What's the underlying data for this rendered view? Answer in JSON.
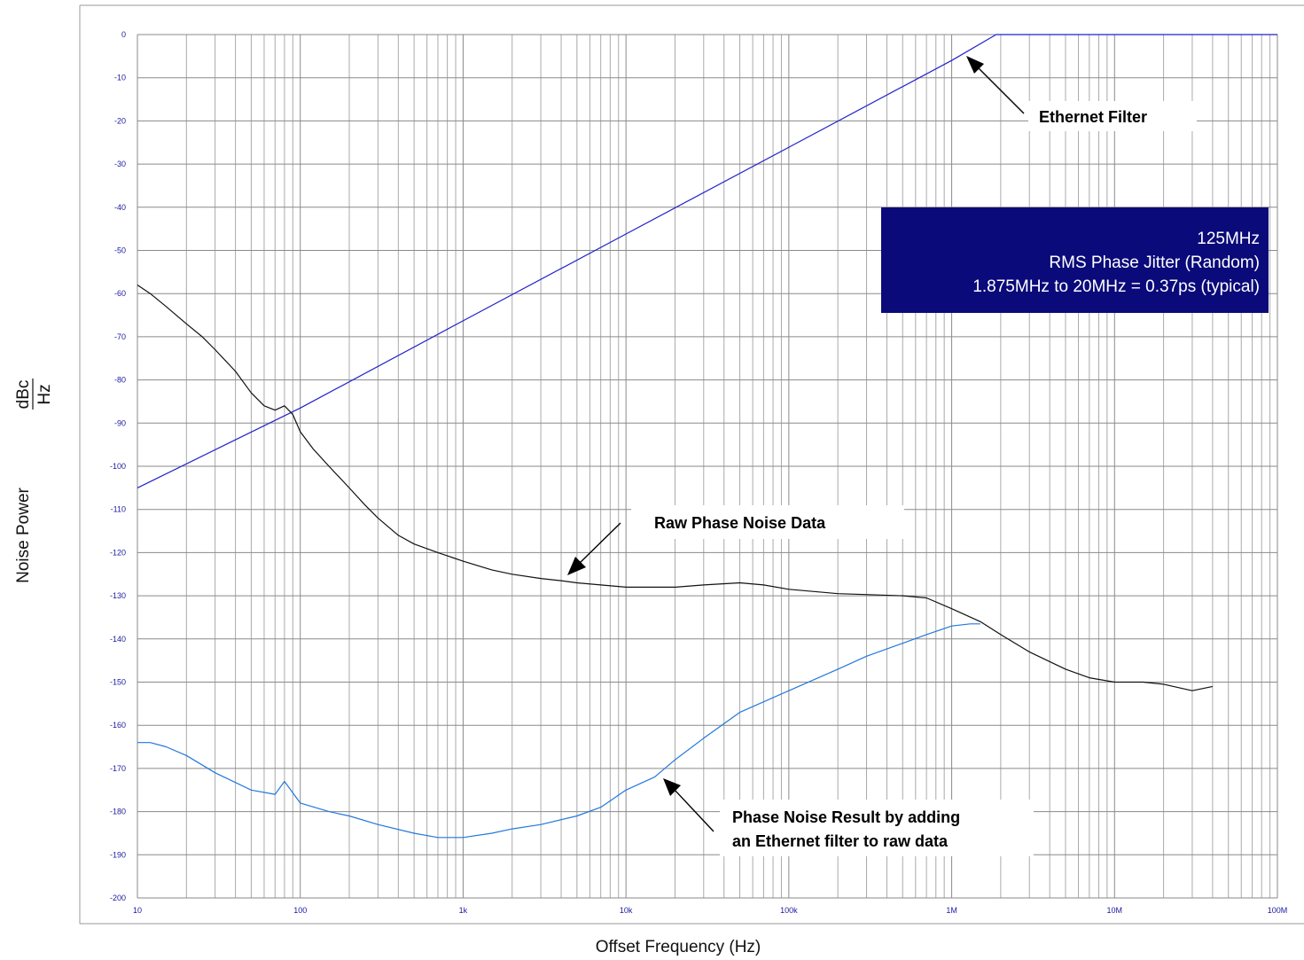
{
  "chart_data": {
    "type": "line",
    "x_scale": "log",
    "xlabel": "Offset Frequency (Hz)",
    "ylabel": "Noise Power",
    "ylabel_unit_num": "dBc",
    "ylabel_unit_den": "Hz",
    "xlim": [
      10,
      100000000
    ],
    "ylim": [
      -200,
      0
    ],
    "grid": true,
    "x_ticks": [
      {
        "value": 10,
        "label": "10"
      },
      {
        "value": 100,
        "label": "100"
      },
      {
        "value": 1000,
        "label": "1k"
      },
      {
        "value": 10000,
        "label": "10k"
      },
      {
        "value": 100000,
        "label": "100k"
      },
      {
        "value": 1000000,
        "label": "1M"
      },
      {
        "value": 10000000,
        "label": "10M"
      },
      {
        "value": 100000000,
        "label": "100M"
      }
    ],
    "y_ticks": [
      0,
      -10,
      -20,
      -30,
      -40,
      -50,
      -60,
      -70,
      -80,
      -90,
      -100,
      -110,
      -120,
      -130,
      -140,
      -150,
      -160,
      -170,
      -180,
      -190,
      -200
    ],
    "colors": {
      "ethernet_filter": "#2222cc",
      "raw": "#111111",
      "result": "#2277dd",
      "box": "#0a0a7a"
    },
    "series": [
      {
        "key": "ethernet_filter",
        "x": [
          10,
          100,
          1000,
          10000,
          100000,
          1000000,
          1875000,
          100000000
        ],
        "y": [
          -105,
          -86.5,
          -66.3,
          -46.2,
          -26.1,
          -6,
          0,
          0
        ]
      },
      {
        "key": "raw",
        "x": [
          10,
          12,
          15,
          20,
          25,
          30,
          40,
          50,
          60,
          70,
          80,
          90,
          100,
          120,
          150,
          200,
          250,
          300,
          400,
          500,
          700,
          1000,
          1500,
          2000,
          3000,
          4000,
          5000,
          7000,
          10000,
          15000,
          20000,
          30000,
          50000,
          70000,
          100000,
          200000,
          500000,
          700000,
          1000000,
          1500000,
          2000000,
          3000000,
          5000000,
          7000000,
          10000000,
          15000000,
          20000000,
          30000000,
          40000000
        ],
        "y": [
          -58,
          -60,
          -63,
          -67,
          -70,
          -73,
          -78,
          -83,
          -86,
          -87,
          -86,
          -88,
          -92,
          -96,
          -100,
          -105,
          -109,
          -112,
          -116,
          -118,
          -120,
          -122,
          -124,
          -125,
          -126,
          -126.5,
          -127,
          -127.5,
          -128,
          -128,
          -128,
          -127.5,
          -127,
          -127.5,
          -128.5,
          -129.5,
          -130,
          -130.5,
          -133,
          -136,
          -139,
          -143,
          -147,
          -149,
          -150,
          -150,
          -150.5,
          -152,
          -151
        ]
      },
      {
        "key": "result",
        "x": [
          10,
          12,
          15,
          20,
          30,
          50,
          70,
          80,
          100,
          150,
          200,
          300,
          500,
          700,
          1000,
          1500,
          2000,
          3000,
          5000,
          7000,
          10000,
          15000,
          20000,
          30000,
          50000,
          100000,
          200000,
          300000,
          500000,
          700000,
          1000000,
          1300000,
          1500000
        ],
        "y": [
          -164,
          -164,
          -165,
          -167,
          -171,
          -175,
          -176,
          -173,
          -178,
          -180,
          -181,
          -183,
          -185,
          -186,
          -186,
          -185,
          -184,
          -183,
          -181,
          -179,
          -175,
          -172,
          -168,
          -163,
          -157,
          -152,
          -147,
          -144,
          -141,
          -139,
          -137,
          -136.5,
          -136.5
        ]
      }
    ],
    "annotations": [
      {
        "key": "ethernet",
        "text": "Ethernet Filter"
      },
      {
        "key": "raw",
        "text": "Raw Phase Noise Data"
      },
      {
        "key": "result_line1",
        "text": "Phase Noise Result by adding"
      },
      {
        "key": "result_line2",
        "text": "an Ethernet filter to raw data"
      }
    ],
    "info_box": [
      "125MHz",
      "RMS Phase Jitter (Random)",
      "1.875MHz to 20MHz = 0.37ps (typical)"
    ]
  }
}
